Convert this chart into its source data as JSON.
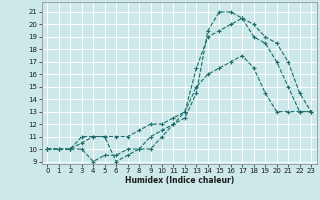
{
  "xlabel": "Humidex (Indice chaleur)",
  "bg_color": "#cce8e8",
  "grid_color": "#ffffff",
  "line_color": "#1a6b6b",
  "xlim": [
    -0.5,
    23.5
  ],
  "ylim": [
    8.8,
    21.8
  ],
  "xticks": [
    0,
    1,
    2,
    3,
    4,
    5,
    6,
    7,
    8,
    9,
    10,
    11,
    12,
    13,
    14,
    15,
    16,
    17,
    18,
    19,
    20,
    21,
    22,
    23
  ],
  "yticks": [
    9,
    10,
    11,
    12,
    13,
    14,
    15,
    16,
    17,
    18,
    19,
    20,
    21
  ],
  "line1_x": [
    0,
    1,
    2,
    3,
    4,
    5,
    6,
    7,
    8,
    9,
    10,
    11,
    12,
    13,
    14,
    15,
    16,
    17,
    18,
    19,
    20,
    21,
    22,
    23
  ],
  "line1_y": [
    10,
    10,
    10,
    10,
    9,
    9.5,
    9.5,
    10,
    10,
    11,
    11.5,
    12,
    13,
    15,
    16,
    16.5,
    17,
    17.5,
    16.5,
    14.5,
    13,
    13,
    13,
    13
  ],
  "line2_x": [
    0,
    1,
    2,
    3,
    4,
    5,
    6,
    7,
    8,
    9,
    10,
    11,
    12,
    13,
    14,
    15,
    16,
    17,
    18,
    19,
    20,
    21,
    22,
    23
  ],
  "line2_y": [
    10,
    10,
    10,
    10.5,
    11,
    11,
    11,
    11,
    11.5,
    12,
    12,
    12.5,
    13,
    16.5,
    19,
    19.5,
    20,
    20.5,
    19,
    18.5,
    17,
    15,
    13,
    13
  ],
  "line3_x": [
    0,
    1,
    2,
    3,
    4,
    5,
    6,
    7,
    8,
    9,
    10,
    11,
    12,
    13,
    14,
    15,
    16,
    17,
    18,
    19,
    20,
    21,
    22,
    23
  ],
  "line3_y": [
    10,
    10,
    10,
    11,
    11,
    11,
    9,
    9.5,
    10,
    10,
    11,
    12,
    12.5,
    14.5,
    19.5,
    21,
    21,
    20.5,
    20,
    19,
    18.5,
    17,
    14.5,
    13
  ]
}
